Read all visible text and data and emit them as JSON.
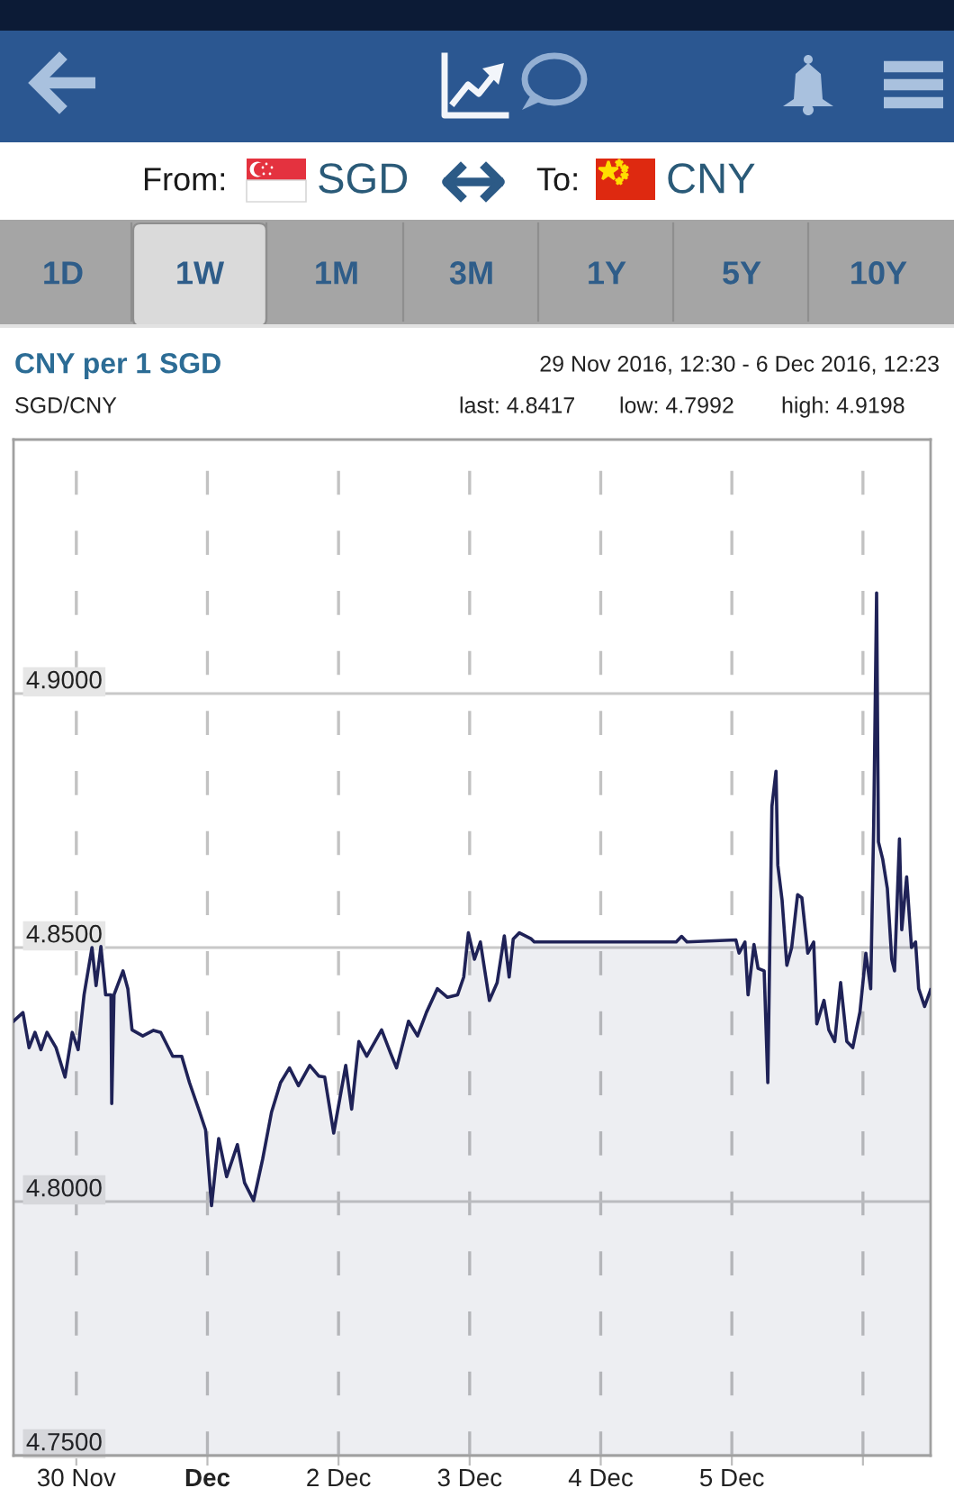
{
  "chart_data": {
    "type": "area",
    "title": "CNY per 1 SGD",
    "subtitle": "SGD/CNY",
    "annotations": [
      "From:",
      "SGD",
      "To:",
      "CNY",
      "1D",
      "1W",
      "1M",
      "3M",
      "1Y",
      "5Y",
      "10Y",
      "29 Nov 2016, 12:30 - 6 Dec 2016, 12:23",
      "last: 4.8417",
      "low: 4.7992",
      "high: 4.9198"
    ],
    "x": [
      "2016-11-29T12:30",
      "2016-11-29T14:14",
      "2016-11-29T15:21",
      "2016-11-29T16:26",
      "2016-11-29T17:31",
      "2016-11-29T18:38",
      "2016-11-29T20:17",
      "2016-11-29T21:56",
      "2016-11-29T23:15",
      "2016-11-30T00:20",
      "2016-11-30T01:25",
      "2016-11-30T02:52",
      "2016-11-30T03:37",
      "2016-11-30T04:30",
      "2016-11-30T05:22",
      "2016-11-30T06:21",
      "2016-11-30T06:29",
      "2016-11-30T06:54",
      "2016-11-30T08:33",
      "2016-11-30T09:26",
      "2016-11-30T10:12",
      "2016-11-30T12:10",
      "2016-11-30T14:08",
      "2016-11-30T15:27",
      "2016-11-30T17:39",
      "2016-11-30T19:18",
      "2016-11-30T20:43",
      "2016-11-30T22:35",
      "2016-11-30T23:40",
      "2016-12-01T00:45",
      "2016-12-01T02:04",
      "2016-12-01T03:31",
      "2016-12-01T05:29",
      "2016-12-01T06:48",
      "2016-12-01T08:27",
      "2016-12-01T10:06",
      "2016-12-01T11:44",
      "2016-12-01T13:23",
      "2016-12-01T15:01",
      "2016-12-01T16:40",
      "2016-12-01T18:44",
      "2016-12-01T20:23",
      "2016-12-01T21:28",
      "2016-12-01T23:07",
      "2016-12-02T01:19",
      "2016-12-02T02:24",
      "2016-12-02T03:43",
      "2016-12-02T05:10",
      "2016-12-02T07:53",
      "2016-12-02T09:32",
      "2016-12-02T10:37",
      "2016-12-02T12:49",
      "2016-12-02T14:28",
      "2016-12-02T16:07",
      "2016-12-02T18:05",
      "2016-12-02T19:57",
      "2016-12-02T21:48",
      "2016-12-02T22:55",
      "2016-12-02T23:46",
      "2016-12-03T00:53",
      "2016-12-03T01:58",
      "2016-12-03T03:37",
      "2016-12-03T05:02",
      "2016-12-03T06:21",
      "2016-12-03T07:14",
      "2016-12-03T07:59",
      "2016-12-03T09:06",
      "2016-12-03T11:17",
      "2016-12-03T11:50",
      "2016-12-04T13:49",
      "2016-12-04T14:48",
      "2016-12-04T15:47",
      "2016-12-05T00:45",
      "2016-12-05T01:19",
      "2016-12-05T02:24",
      "2016-12-05T02:58",
      "2016-12-05T04:03",
      "2016-12-05T04:48",
      "2016-12-05T05:55",
      "2016-12-05T06:35",
      "2016-12-05T07:20",
      "2016-12-05T08:05",
      "2016-12-05T08:25",
      "2016-12-05T09:12",
      "2016-12-05T10:04",
      "2016-12-05T10:57",
      "2016-12-05T12:02",
      "2016-12-05T12:49",
      "2016-12-05T13:54",
      "2016-12-05T14:59",
      "2016-12-05T15:33",
      "2016-12-05T16:52",
      "2016-12-05T17:45",
      "2016-12-05T18:50",
      "2016-12-05T19:55",
      "2016-12-05T21:03",
      "2016-12-05T22:08",
      "2016-12-05T23:27",
      "2016-12-06T00:32",
      "2016-12-06T01:25",
      "2016-12-06T01:58",
      "2016-12-06T02:30",
      "2016-12-06T02:50",
      "2016-12-06T03:37",
      "2016-12-06T04:28",
      "2016-12-06T05:16",
      "2016-12-06T05:47",
      "2016-12-06T06:41",
      "2016-12-06T07:06",
      "2016-12-06T08:00",
      "2016-12-06T08:53",
      "2016-12-06T09:38",
      "2016-12-06T10:12",
      "2016-12-06T11:17",
      "2016-12-06T12:23"
    ],
    "series": [
      {
        "color": "#1f2257",
        "values": [
          4.8355,
          4.8372,
          4.8303,
          4.8333,
          4.8299,
          4.8333,
          4.8303,
          4.8245,
          4.8333,
          4.8299,
          4.8407,
          4.85,
          4.8425,
          4.8502,
          4.8407,
          4.8407,
          4.8193,
          4.8407,
          4.8454,
          4.8419,
          4.8338,
          4.8326,
          4.8337,
          4.8333,
          4.8286,
          4.8286,
          4.8234,
          4.8176,
          4.8141,
          4.7992,
          4.8124,
          4.8049,
          4.8112,
          4.8037,
          4.8002,
          4.8083,
          4.8176,
          4.8234,
          4.8263,
          4.8228,
          4.8268,
          4.8247,
          4.8245,
          4.8135,
          4.8268,
          4.8182,
          4.8315,
          4.8286,
          4.8338,
          4.8292,
          4.8263,
          4.8355,
          4.8326,
          4.8373,
          4.8419,
          4.8402,
          4.8407,
          4.8442,
          4.8529,
          4.8477,
          4.8511,
          4.8396,
          4.8431,
          4.8523,
          4.8442,
          4.8517,
          4.8529,
          4.8517,
          4.8511,
          4.8511,
          4.8522,
          4.8511,
          4.8515,
          4.8489,
          4.8511,
          4.8407,
          4.8506,
          4.8459,
          4.8454,
          4.8234,
          4.8778,
          4.8847,
          4.8662,
          4.8593,
          4.8465,
          4.85,
          4.8604,
          4.8598,
          4.8489,
          4.8511,
          4.835,
          4.8396,
          4.8338,
          4.8315,
          4.8431,
          4.8315,
          4.8303,
          4.8373,
          4.8489,
          4.8419,
          4.8743,
          4.9198,
          4.8708,
          4.8674,
          4.8616,
          4.8477,
          4.8454,
          4.8714,
          4.8535,
          4.8639,
          4.85,
          4.8511,
          4.8419,
          4.8384,
          4.8417
        ]
      }
    ],
    "xlim": [
      "2016-11-29T12:30",
      "2016-12-06T12:23"
    ],
    "xticks": [
      {
        "value": "2016-11-30",
        "label": "30 Nov"
      },
      {
        "value": "2016-12-01",
        "label": "Dec"
      },
      {
        "value": "2016-12-02",
        "label": "2 Dec"
      },
      {
        "value": "2016-12-03",
        "label": "3 Dec"
      },
      {
        "value": "2016-12-04",
        "label": "4 Dec"
      },
      {
        "value": "2016-12-05",
        "label": "5 Dec"
      },
      {
        "value": "2016-12-06",
        "label": null
      }
    ],
    "ylim": [
      4.75,
      4.95
    ],
    "yticks": [
      {
        "value": 4.75,
        "label": "4.7500"
      },
      {
        "value": 4.8,
        "label": "4.8000"
      },
      {
        "value": 4.85,
        "label": "4.8500"
      },
      {
        "value": 4.9,
        "label": "4.9000"
      }
    ],
    "grid": true
  }
}
